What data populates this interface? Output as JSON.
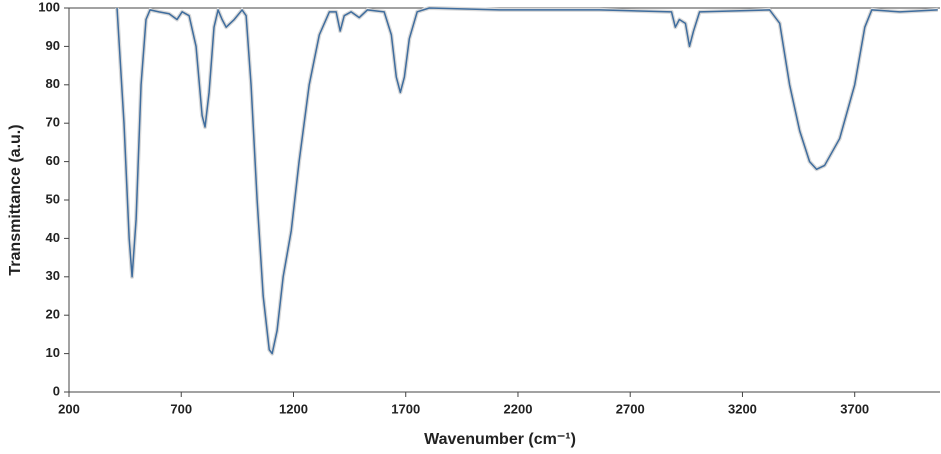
{
  "chart_data": {
    "type": "line",
    "xlabel": "Wavenumber (cm⁻¹)",
    "ylabel": "Transmittance (a.u.)",
    "x": [
      414,
      445,
      468,
      481,
      499,
      521,
      543,
      561,
      601,
      646,
      681,
      704,
      735,
      766,
      793,
      806,
      824,
      846,
      864,
      882,
      900,
      936,
      971,
      989,
      1011,
      1038,
      1065,
      1092,
      1105,
      1127,
      1154,
      1190,
      1225,
      1270,
      1315,
      1360,
      1390,
      1408,
      1426,
      1457,
      1493,
      1529,
      1604,
      1636,
      1658,
      1676,
      1694,
      1716,
      1751,
      1805,
      2117,
      2563,
      2884,
      2901,
      2919,
      2946,
      2964,
      2982,
      3009,
      3321,
      3366,
      3410,
      3455,
      3499,
      3530,
      3566,
      3633,
      3700,
      3745,
      3776,
      3901,
      4070
    ],
    "series": [
      {
        "color": "#3f6d9e",
        "values": [
          100,
          70,
          40,
          30,
          45,
          80,
          97,
          99.5,
          99,
          98.5,
          97,
          99,
          98,
          90,
          72,
          69,
          78,
          95,
          99.5,
          97,
          95,
          97,
          99.5,
          98,
          80,
          50,
          25,
          11,
          10,
          16,
          30,
          42,
          60,
          80,
          93,
          99,
          99,
          94,
          98,
          99,
          97.5,
          99.5,
          99,
          93,
          82,
          78,
          82,
          92,
          99,
          100,
          99.5,
          99.5,
          99,
          95,
          97,
          96,
          90,
          94,
          99,
          99.5,
          96,
          80,
          68,
          60,
          58,
          59,
          66,
          80,
          95,
          99.5,
          99,
          99.5
        ]
      }
    ],
    "xlim": [
      200,
      4080
    ],
    "xticks": [
      200,
      700,
      1200,
      1700,
      2200,
      2700,
      3200,
      3700
    ],
    "ylim": [
      0,
      100
    ],
    "yticks": [
      0,
      10,
      20,
      30,
      40,
      50,
      60,
      70,
      80,
      90,
      100
    ],
    "grid": false
  }
}
